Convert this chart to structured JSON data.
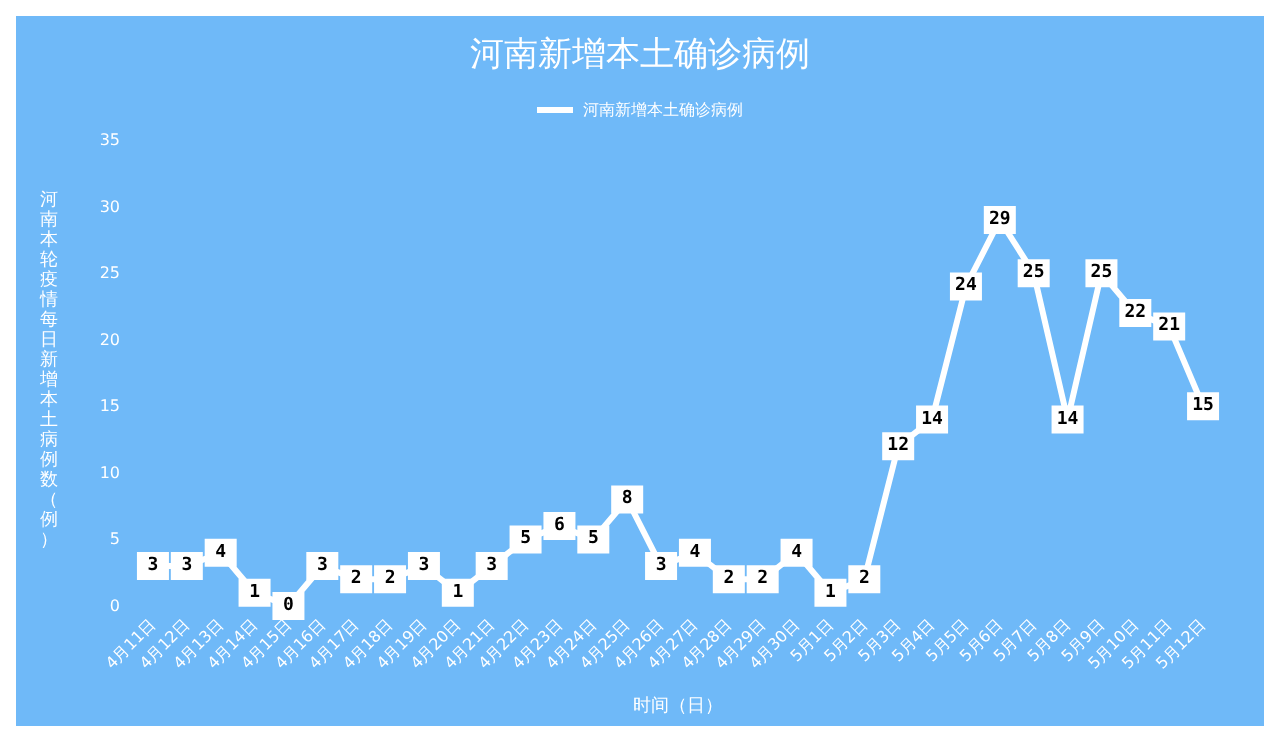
{
  "chart_data": {
    "type": "line",
    "title": "河南新增本土确诊病例",
    "xlabel": "时间（日）",
    "ylabel": "河南本轮疫情每日新增本土病例数（例）",
    "categories": [
      "4月11日",
      "4月12日",
      "4月13日",
      "4月14日",
      "4月15日",
      "4月16日",
      "4月17日",
      "4月18日",
      "4月19日",
      "4月20日",
      "4月21日",
      "4月22日",
      "4月23日",
      "4月24日",
      "4月25日",
      "4月26日",
      "4月27日",
      "4月28日",
      "4月29日",
      "4月30日",
      "5月1日",
      "5月2日",
      "5月3日",
      "5月4日",
      "5月5日",
      "5月6日",
      "5月7日",
      "5月8日",
      "5月9日",
      "5月10日",
      "5月11日",
      "5月12日"
    ],
    "series": [
      {
        "name": "河南新增本土确诊病例",
        "color": "#ffffff",
        "values": [
          3,
          3,
          4,
          1,
          0,
          3,
          2,
          2,
          3,
          1,
          3,
          5,
          6,
          5,
          8,
          3,
          4,
          2,
          2,
          4,
          1,
          2,
          12,
          14,
          24,
          29,
          25,
          14,
          25,
          22,
          21,
          15
        ]
      }
    ],
    "ylim": [
      0,
      35
    ],
    "yticks": [
      0,
      5,
      10,
      15,
      20,
      25,
      30,
      35
    ],
    "grid": false,
    "legend": "top",
    "data_labels": true,
    "marker": "square",
    "line_style": "solid"
  }
}
